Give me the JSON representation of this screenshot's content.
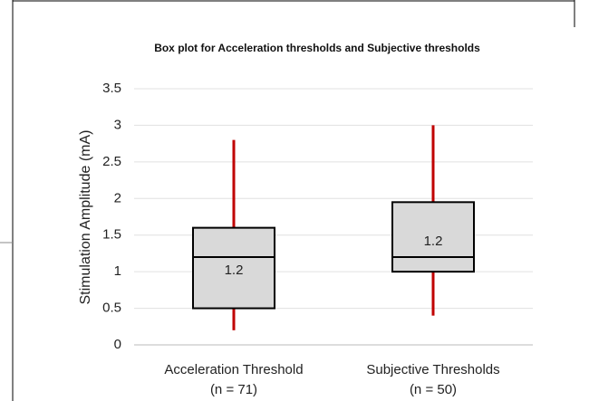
{
  "chart_data": {
    "type": "box",
    "title": "Box plot for Acceleration thresholds and Subjective thresholds",
    "y_label": "Stimulation Amplitude (mA)",
    "categories": [
      "Acceleration Threshold",
      "Subjective Thresholds"
    ],
    "category_notes": [
      "(n = 71)",
      "(n = 50)"
    ],
    "boxes": [
      {
        "min": 0.2,
        "q1": 0.5,
        "median": 1.2,
        "q3": 1.6,
        "max": 2.8
      },
      {
        "min": 0.4,
        "q1": 1.0,
        "median": 1.2,
        "q3": 1.95,
        "max": 3.0
      }
    ],
    "box_color": "#d9d9d9",
    "whisker_color": "#c00000",
    "ylim": [
      0,
      3.5
    ],
    "yticks": [
      0,
      0.5,
      1,
      1.5,
      2,
      2.5,
      3,
      3.5
    ],
    "grid": true
  }
}
